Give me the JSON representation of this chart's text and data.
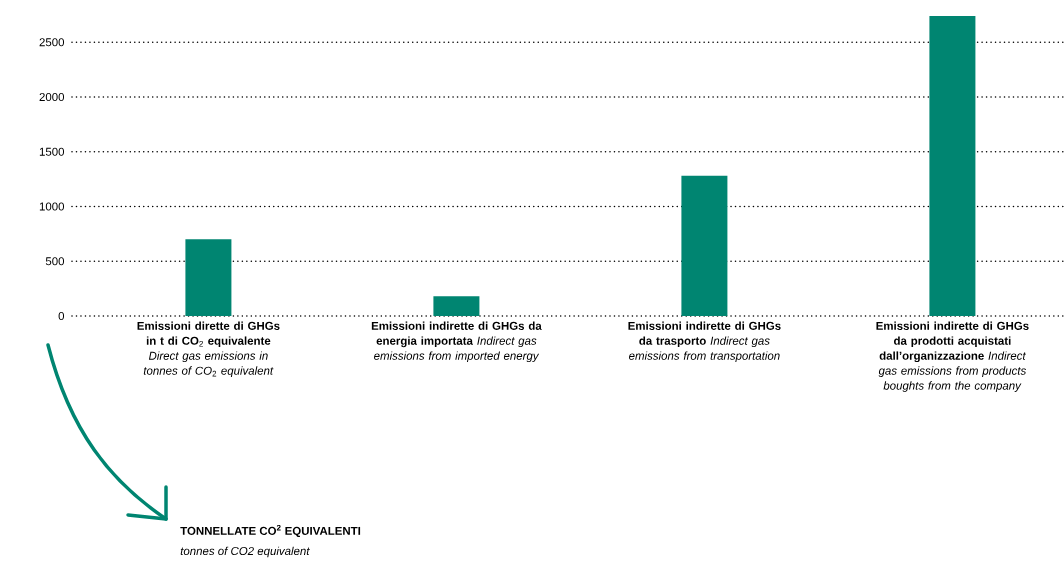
{
  "chart_data": {
    "type": "bar",
    "categories": [
      "**Emissioni dirette di GHGs in t di CO**$_{2}$ **equivalente** *Direct gas emissions in tonnes of CO*$_{2}$ *equivalent*",
      "**Emissioni indirette di GHGs da energia importata** *Indirect gas emissions from imported energy*",
      "**Emissioni indirette di GHGs da trasporto** *Indirect gas emissions from transportation*",
      "**Emissioni indirette di GHGs da prodotti acquistati dall’organizzazione** *Indirect gas emissions from products boughts from the company*"
    ],
    "values": [
      700,
      180,
      1280,
      2740
    ],
    "color": "#008571",
    "ylim": [
      0,
      2740
    ],
    "yticks": [
      0,
      500,
      1000,
      1500,
      2000,
      2500
    ],
    "grid": "y",
    "annotations": [
      "TONNELLATE CO$^{2}$ EQUIVALENTI",
      "tonnes of CO2 equivalent"
    ]
  }
}
